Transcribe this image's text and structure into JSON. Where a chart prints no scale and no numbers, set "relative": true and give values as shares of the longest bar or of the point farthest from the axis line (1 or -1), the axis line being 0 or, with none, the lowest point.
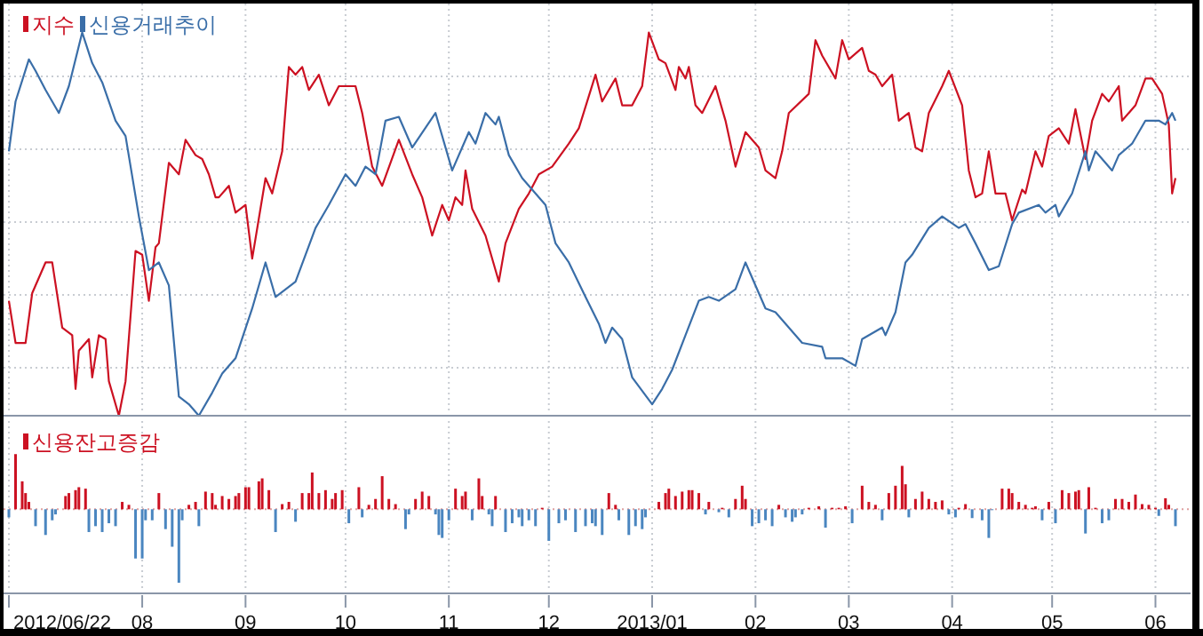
{
  "chart_data": [
    {
      "type": "line",
      "relative": true,
      "tick_labels": false,
      "grid": true,
      "legend": "top left",
      "xlim": [
        "2012-06-22",
        "2013-06-11"
      ],
      "xticks": [
        {
          "value": "2012-06-22",
          "label": null
        },
        {
          "value": "2012-08-01",
          "label": null
        },
        {
          "value": "2012-09-01",
          "label": null
        },
        {
          "value": "2012-10-01",
          "label": null
        },
        {
          "value": "2012-11-01",
          "label": null
        },
        {
          "value": "2012-12-01",
          "label": null
        },
        {
          "value": "2013-01-01",
          "label": null
        },
        {
          "value": "2013-02-01",
          "label": null
        },
        {
          "value": "2013-03-01",
          "label": null
        },
        {
          "value": "2013-04-01",
          "label": null
        },
        {
          "value": "2013-05-01",
          "label": null
        },
        {
          "value": "2013-06-01",
          "label": null
        }
      ],
      "series": [
        {
          "name": "지수",
          "color": "#cc1122",
          "x": [
            "2012-06-22",
            "2012-06-24",
            "2012-06-27",
            "2012-06-29",
            "2012-07-03",
            "2012-07-05",
            "2012-07-08",
            "2012-07-11",
            "2012-07-12",
            "2012-07-13",
            "2012-07-16",
            "2012-07-17",
            "2012-07-19",
            "2012-07-21",
            "2012-07-22",
            "2012-07-25",
            "2012-07-27",
            "2012-07-30",
            "2012-08-01",
            "2012-08-03",
            "2012-08-05",
            "2012-08-06",
            "2012-08-09",
            "2012-08-12",
            "2012-08-14",
            "2012-08-17",
            "2012-08-19",
            "2012-08-21",
            "2012-08-23",
            "2012-08-24",
            "2012-08-27",
            "2012-08-29",
            "2012-09-01",
            "2012-09-03",
            "2012-09-07",
            "2012-09-09",
            "2012-09-12",
            "2012-09-14",
            "2012-09-16",
            "2012-09-18",
            "2012-09-20",
            "2012-09-23",
            "2012-09-26",
            "2012-09-29",
            "2012-10-04",
            "2012-10-06",
            "2012-10-09",
            "2012-10-12",
            "2012-10-17",
            "2012-10-21",
            "2012-10-24",
            "2012-10-27",
            "2012-10-30",
            "2012-11-01",
            "2012-11-03",
            "2012-11-05",
            "2012-11-06",
            "2012-11-08",
            "2012-11-12",
            "2012-11-16",
            "2012-11-18",
            "2012-11-22",
            "2012-11-25",
            "2012-11-28",
            "2012-12-02",
            "2012-12-07",
            "2012-12-10",
            "2012-12-15",
            "2012-12-17",
            "2012-12-21",
            "2012-12-23",
            "2012-12-26",
            "2012-12-29",
            "2012-12-31",
            "2013-01-03",
            "2013-01-05",
            "2013-01-08",
            "2013-01-09",
            "2013-01-11",
            "2013-01-12",
            "2013-01-14",
            "2013-01-16",
            "2013-01-20",
            "2013-01-23",
            "2013-01-26",
            "2013-01-29",
            "2013-02-02",
            "2013-02-04",
            "2013-02-07",
            "2013-02-09",
            "2013-02-11",
            "2013-02-17",
            "2013-02-19",
            "2013-02-21",
            "2013-02-25",
            "2013-02-27",
            "2013-03-01",
            "2013-03-05",
            "2013-03-07",
            "2013-03-09",
            "2013-03-11",
            "2013-03-14",
            "2013-03-16",
            "2013-03-19",
            "2013-03-21",
            "2013-03-23",
            "2013-03-25",
            "2013-03-29",
            "2013-03-31",
            "2013-04-04",
            "2013-04-06",
            "2013-04-08",
            "2013-04-10",
            "2013-04-12",
            "2013-04-14",
            "2013-04-17",
            "2013-04-19",
            "2013-04-22",
            "2013-04-23",
            "2013-04-26",
            "2013-04-28",
            "2013-04-30",
            "2013-05-03",
            "2013-05-06",
            "2013-05-08",
            "2013-05-11",
            "2013-05-13",
            "2013-05-16",
            "2013-05-18",
            "2013-05-21",
            "2013-05-22",
            "2013-05-26",
            "2013-05-29",
            "2013-05-31",
            "2013-06-03",
            "2013-06-05",
            "2013-06-06",
            "2013-06-07"
          ],
          "values": [
            0.3,
            0.19,
            0.19,
            0.32,
            0.4,
            0.4,
            0.23,
            0.21,
            0.07,
            0.17,
            0.2,
            0.1,
            0.21,
            0.2,
            0.09,
            0,
            0.09,
            0.43,
            0.42,
            0.3,
            0.44,
            0.45,
            0.66,
            0.63,
            0.72,
            0.68,
            0.67,
            0.63,
            0.57,
            0.57,
            0.6,
            0.53,
            0.55,
            0.41,
            0.62,
            0.58,
            0.69,
            0.91,
            0.89,
            0.91,
            0.85,
            0.89,
            0.81,
            0.86,
            0.86,
            0.79,
            0.65,
            0.6,
            0.72,
            0.63,
            0.57,
            0.47,
            0.55,
            0.51,
            0.57,
            0.55,
            0.64,
            0.54,
            0.47,
            0.35,
            0.45,
            0.54,
            0.58,
            0.63,
            0.65,
            0.71,
            0.75,
            0.89,
            0.82,
            0.88,
            0.81,
            0.81,
            0.86,
            1.0,
            0.93,
            0.92,
            0.85,
            0.91,
            0.88,
            0.91,
            0.81,
            0.79,
            0.86,
            0.77,
            0.65,
            0.74,
            0.7,
            0.64,
            0.62,
            0.69,
            0.79,
            0.84,
            0.98,
            0.94,
            0.88,
            0.98,
            0.93,
            0.96,
            0.9,
            0.89,
            0.86,
            0.89,
            0.77,
            0.79,
            0.7,
            0.69,
            0.79,
            0.86,
            0.9,
            0.81,
            0.64,
            0.57,
            0.58,
            0.69,
            0.58,
            0.58,
            0.51,
            0.59,
            0.58,
            0.69,
            0.65,
            0.73,
            0.75,
            0.71,
            0.8,
            0.67,
            0.77,
            0.84,
            0.82,
            0.86,
            0.77,
            0.81,
            0.88,
            0.88,
            0.84,
            0.76,
            0.58,
            0.62
          ]
        },
        {
          "name": "신용거래추이",
          "color": "#3a6ea8",
          "x": [
            "2012-06-22",
            "2012-06-24",
            "2012-06-28",
            "2012-06-30",
            "2012-07-03",
            "2012-07-07",
            "2012-07-10",
            "2012-07-14",
            "2012-07-17",
            "2012-07-20",
            "2012-07-24",
            "2012-07-27",
            "2012-07-31",
            "2012-08-03",
            "2012-08-06",
            "2012-08-09",
            "2012-08-12",
            "2012-08-15",
            "2012-08-18",
            "2012-08-22",
            "2012-08-25",
            "2012-08-29",
            "2012-09-03",
            "2012-09-07",
            "2012-09-10",
            "2012-09-16",
            "2012-09-22",
            "2012-09-26",
            "2012-10-01",
            "2012-10-04",
            "2012-10-07",
            "2012-10-10",
            "2012-10-13",
            "2012-10-17",
            "2012-10-21",
            "2012-10-28",
            "2012-11-02",
            "2012-11-07",
            "2012-11-09",
            "2012-11-12",
            "2012-11-15",
            "2012-11-16",
            "2012-11-19",
            "2012-11-23",
            "2012-11-30",
            "2012-12-03",
            "2012-12-07",
            "2012-12-12",
            "2012-12-16",
            "2012-12-18",
            "2012-12-20",
            "2012-12-23",
            "2012-12-26",
            "2013-01-01",
            "2013-01-04",
            "2013-01-07",
            "2013-01-11",
            "2013-01-15",
            "2013-01-18",
            "2013-01-21",
            "2013-01-26",
            "2013-01-29",
            "2013-02-04",
            "2013-02-07",
            "2013-02-15",
            "2013-02-21",
            "2013-02-22",
            "2013-02-27",
            "2013-03-03",
            "2013-03-05",
            "2013-03-11",
            "2013-03-12",
            "2013-03-15",
            "2013-03-18",
            "2013-03-20",
            "2013-03-25",
            "2013-03-29",
            "2013-04-03",
            "2013-04-05",
            "2013-04-08",
            "2013-04-12",
            "2013-04-15",
            "2013-04-19",
            "2013-04-21",
            "2013-04-27",
            "2013-04-29",
            "2013-05-02",
            "2013-05-03",
            "2013-05-07",
            "2013-05-11",
            "2013-05-12",
            "2013-05-14",
            "2013-05-19",
            "2013-05-21",
            "2013-05-25",
            "2013-05-29",
            "2013-06-02",
            "2013-06-04",
            "2013-06-06",
            "2013-06-07"
          ],
          "values": [
            0.69,
            0.82,
            0.93,
            0.9,
            0.85,
            0.79,
            0.86,
            1.0,
            0.92,
            0.87,
            0.77,
            0.73,
            0.52,
            0.38,
            0.4,
            0.34,
            0.05,
            0.03,
            0,
            0.06,
            0.11,
            0.15,
            0.28,
            0.4,
            0.31,
            0.35,
            0.49,
            0.55,
            0.63,
            0.6,
            0.65,
            0.63,
            0.77,
            0.78,
            0.7,
            0.79,
            0.64,
            0.74,
            0.71,
            0.79,
            0.76,
            0.78,
            0.68,
            0.62,
            0.55,
            0.45,
            0.4,
            0.31,
            0.24,
            0.19,
            0.23,
            0.2,
            0.1,
            0.03,
            0.07,
            0.12,
            0.21,
            0.3,
            0.31,
            0.3,
            0.33,
            0.4,
            0.28,
            0.27,
            0.19,
            0.18,
            0.15,
            0.15,
            0.13,
            0.2,
            0.23,
            0.21,
            0.27,
            0.4,
            0.42,
            0.49,
            0.52,
            0.49,
            0.5,
            0.45,
            0.38,
            0.39,
            0.5,
            0.53,
            0.55,
            0.53,
            0.55,
            0.52,
            0.58,
            0.69,
            0.64,
            0.69,
            0.64,
            0.68,
            0.71,
            0.77,
            0.77,
            0.76,
            0.79,
            0.77
          ]
        }
      ]
    },
    {
      "type": "bar",
      "relative": true,
      "grid": "x",
      "legend": "top left",
      "ref_lines": [
        {
          "axis": "y",
          "value": 0,
          "color": "#e0a0a0",
          "line_style": "dotted"
        }
      ],
      "xlim": [
        "2012-06-22",
        "2013-06-11"
      ],
      "xticks": [
        {
          "value": "2012-06-22",
          "label": "2012/06/22"
        },
        {
          "value": "2012-08-01",
          "label": "08"
        },
        {
          "value": "2012-09-01",
          "label": "09"
        },
        {
          "value": "2012-10-01",
          "label": "10"
        },
        {
          "value": "2012-11-01",
          "label": "11"
        },
        {
          "value": "2012-12-01",
          "label": "12"
        },
        {
          "value": "2013-01-01",
          "label": "2013/01"
        },
        {
          "value": "2013-02-01",
          "label": "02"
        },
        {
          "value": "2013-03-01",
          "label": "03"
        },
        {
          "value": "2013-04-01",
          "label": "04"
        },
        {
          "value": "2013-05-01",
          "label": "05"
        },
        {
          "value": "2013-06-01",
          "label": "06"
        }
      ],
      "series": [
        {
          "name": "신용잔고증감",
          "color": "#cc1122",
          "x": [
            "2012-06-24",
            "2012-06-26",
            "2012-06-27",
            "2012-06-28",
            "2012-07-09",
            "2012-07-10",
            "2012-07-12",
            "2012-07-13",
            "2012-07-15",
            "2012-07-26",
            "2012-07-28",
            "2012-08-06",
            "2012-08-15",
            "2012-08-17",
            "2012-08-20",
            "2012-08-22",
            "2012-08-23",
            "2012-08-25",
            "2012-08-27",
            "2012-08-29",
            "2012-08-30",
            "2012-09-01",
            "2012-09-02",
            "2012-09-05",
            "2012-09-06",
            "2012-09-08",
            "2012-09-12",
            "2012-09-14",
            "2012-09-18",
            "2012-09-20",
            "2012-09-21",
            "2012-09-23",
            "2012-09-25",
            "2012-09-27",
            "2012-09-28",
            "2012-09-30",
            "2012-10-05",
            "2012-10-08",
            "2012-10-10",
            "2012-10-12",
            "2012-10-14",
            "2012-10-16",
            "2012-10-22",
            "2012-10-24",
            "2012-10-26",
            "2012-11-03",
            "2012-11-05",
            "2012-11-06",
            "2012-11-10",
            "2012-11-11",
            "2012-11-15",
            "2012-11-29",
            "2012-12-19",
            "2012-12-21",
            "2013-01-03",
            "2013-01-05",
            "2013-01-06",
            "2013-01-08",
            "2013-01-10",
            "2013-01-12",
            "2013-01-13",
            "2013-01-15",
            "2013-01-18",
            "2013-01-22",
            "2013-01-26",
            "2013-01-28",
            "2013-01-29",
            "2013-02-08",
            "2013-02-17",
            "2013-02-20",
            "2013-02-24",
            "2013-02-26",
            "2013-02-28",
            "2013-03-05",
            "2013-03-07",
            "2013-03-09",
            "2013-03-13",
            "2013-03-15",
            "2013-03-17",
            "2013-03-18",
            "2013-03-21",
            "2013-03-23",
            "2013-03-25",
            "2013-03-27",
            "2013-03-29",
            "2013-04-03",
            "2013-04-05",
            "2013-04-16",
            "2013-04-18",
            "2013-04-19",
            "2013-04-21",
            "2013-04-23",
            "2013-04-25",
            "2013-04-26",
            "2013-04-30",
            "2013-05-04",
            "2013-05-06",
            "2013-05-08",
            "2013-05-09",
            "2013-05-12",
            "2013-05-14",
            "2013-05-20",
            "2013-05-22",
            "2013-05-24",
            "2013-05-26",
            "2013-05-28",
            "2013-05-30",
            "2013-06-01",
            "2013-06-04",
            "2013-06-05"
          ],
          "values": [
            0.75,
            0.38,
            0.22,
            0.1,
            0.18,
            0.22,
            0.26,
            0.3,
            0.28,
            0.1,
            0.06,
            0.22,
            0.06,
            0.1,
            0.24,
            0.22,
            0.06,
            0.18,
            0.14,
            0.18,
            0.22,
            0.3,
            0.3,
            0.38,
            0.42,
            0.26,
            0.07,
            0.1,
            0.22,
            0.22,
            0.5,
            0.22,
            0.26,
            0.14,
            0.22,
            0.26,
            0.3,
            0.06,
            0.14,
            0.45,
            0.14,
            0.07,
            0.14,
            0.24,
            0.18,
            0.28,
            0.18,
            0.24,
            0.42,
            0.18,
            0.18,
            0.02,
            0.22,
            0.06,
            0.1,
            0.22,
            0.28,
            0.18,
            0.24,
            0.26,
            0.26,
            0.22,
            0.1,
            0.02,
            0.14,
            0.32,
            0.14,
            0.06,
            0.02,
            0.04,
            0.02,
            0.02,
            0.04,
            0.32,
            0.1,
            0.06,
            0.22,
            0.32,
            0.59,
            0.34,
            0.14,
            0.24,
            0.14,
            0.1,
            0.12,
            0.02,
            0.07,
            0.28,
            0.28,
            0.22,
            0.1,
            0.06,
            0.02,
            0.04,
            0.1,
            0.26,
            0.22,
            0.24,
            0.26,
            0.3,
            0.02,
            0.14,
            0.14,
            0.1,
            0.2,
            0.07,
            0.06,
            0.02,
            0.15,
            0.06
          ]
        },
        {
          "color": "#4a86c0",
          "x": [
            "2012-06-22",
            "2012-06-30",
            "2012-07-03",
            "2012-07-05",
            "2012-07-06",
            "2012-07-16",
            "2012-07-18",
            "2012-07-20",
            "2012-07-22",
            "2012-07-24",
            "2012-07-30",
            "2012-08-01",
            "2012-08-02",
            "2012-08-04",
            "2012-08-08",
            "2012-08-10",
            "2012-08-12",
            "2012-08-13",
            "2012-08-18",
            "2012-09-10",
            "2012-09-16",
            "2012-10-02",
            "2012-10-06",
            "2012-10-19",
            "2012-10-20",
            "2012-10-28",
            "2012-10-29",
            "2012-10-30",
            "2012-11-01",
            "2012-11-08",
            "2012-11-13",
            "2012-11-14",
            "2012-11-18",
            "2012-11-20",
            "2012-11-22",
            "2012-11-23",
            "2012-11-25",
            "2012-11-27",
            "2012-12-01",
            "2012-12-04",
            "2012-12-06",
            "2012-12-09",
            "2012-12-12",
            "2012-12-14",
            "2012-12-15",
            "2012-12-17",
            "2012-12-22",
            "2012-12-25",
            "2012-12-27",
            "2012-12-29",
            "2012-12-30",
            "2013-01-17",
            "2013-01-21",
            "2013-01-24",
            "2013-01-31",
            "2013-02-02",
            "2013-02-04",
            "2013-02-06",
            "2013-02-10",
            "2013-02-12",
            "2013-02-13",
            "2013-02-15",
            "2013-02-22",
            "2013-03-02",
            "2013-03-11",
            "2013-03-19",
            "2013-03-31",
            "2013-04-02",
            "2013-04-07",
            "2013-04-10",
            "2013-04-12",
            "2013-04-13",
            "2013-04-28",
            "2013-05-02",
            "2013-05-11",
            "2013-05-16",
            "2013-05-18",
            "2013-06-02",
            "2013-06-07"
          ],
          "values": [
            -0.11,
            -0.23,
            -0.35,
            -0.15,
            -0.07,
            -0.31,
            -0.23,
            -0.31,
            -0.19,
            -0.23,
            -0.67,
            -0.67,
            -0.15,
            -0.15,
            -0.27,
            -0.51,
            -1,
            -0.15,
            -0.23,
            -0.31,
            -0.17,
            -0.19,
            -0.11,
            -0.27,
            -0.07,
            -0.07,
            -0.35,
            -0.39,
            -0.15,
            -0.15,
            -0.07,
            -0.23,
            -0.31,
            -0.19,
            -0.11,
            -0.23,
            -0.15,
            -0.23,
            -0.43,
            -0.19,
            -0.15,
            -0.31,
            -0.23,
            -0.19,
            -0.23,
            -0.35,
            -0.15,
            -0.35,
            -0.23,
            -0.27,
            -0.11,
            -0.07,
            -0.04,
            -0.11,
            -0.23,
            -0.19,
            -0.15,
            -0.23,
            -0.11,
            -0.17,
            -0.11,
            -0.07,
            -0.25,
            -0.19,
            -0.15,
            -0.11,
            -0.07,
            -0.11,
            -0.12,
            -0.15,
            -0.39,
            -0.01,
            -0.15,
            -0.19,
            -0.33,
            -0.19,
            -0.15,
            -0.09,
            -0.23
          ]
        }
      ]
    }
  ]
}
